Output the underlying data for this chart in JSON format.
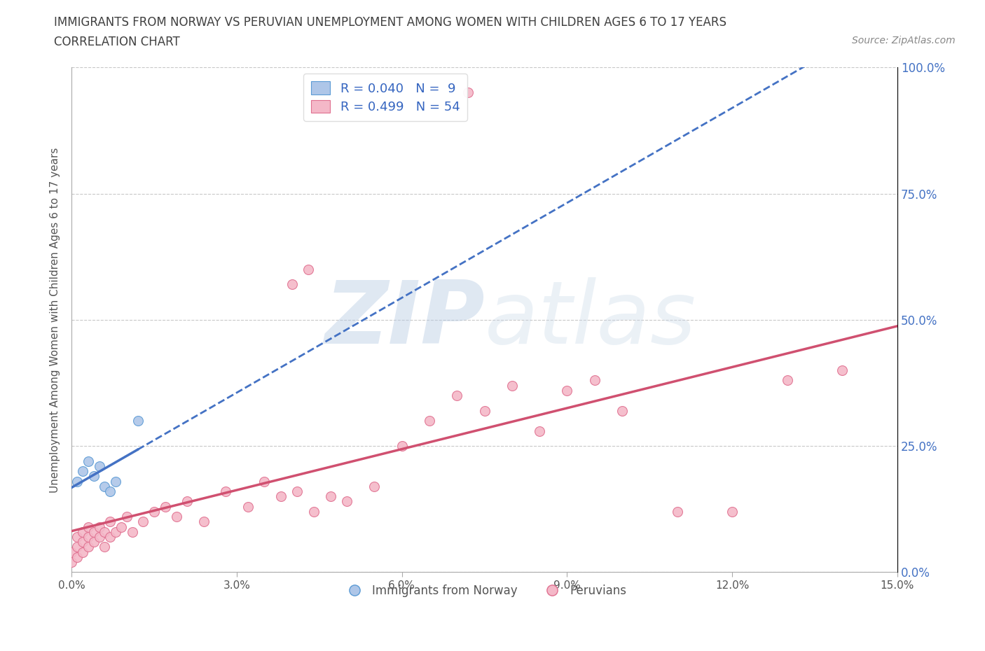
{
  "title_line1": "IMMIGRANTS FROM NORWAY VS PERUVIAN UNEMPLOYMENT AMONG WOMEN WITH CHILDREN AGES 6 TO 17 YEARS",
  "title_line2": "CORRELATION CHART",
  "source_text": "Source: ZipAtlas.com",
  "watermark_zip": "ZIP",
  "watermark_atlas": "atlas",
  "ylabel": "Unemployment Among Women with Children Ages 6 to 17 years",
  "xlim": [
    0.0,
    0.15
  ],
  "ylim": [
    0.0,
    1.0
  ],
  "xtick_vals": [
    0.0,
    0.03,
    0.06,
    0.09,
    0.12,
    0.15
  ],
  "xtick_labels": [
    "0.0%",
    "3.0%",
    "6.0%",
    "9.0%",
    "12.0%",
    "15.0%"
  ],
  "ytick_vals": [
    0.0,
    0.25,
    0.5,
    0.75,
    1.0
  ],
  "ytick_labels": [
    "0.0%",
    "25.0%",
    "50.0%",
    "75.0%",
    "100.0%"
  ],
  "norway_color": "#aec6e8",
  "norway_edge_color": "#5b9bd5",
  "peru_color": "#f4b8c8",
  "peru_edge_color": "#e07090",
  "norway_R": 0.04,
  "norway_N": 9,
  "peru_R": 0.499,
  "peru_N": 54,
  "norway_line_color": "#4472c4",
  "peru_line_color": "#d05070",
  "grid_color": "#c8c8c8",
  "background_color": "#ffffff",
  "title_color": "#404040",
  "legend_text_color": "#3565c0",
  "norway_x": [
    0.001,
    0.002,
    0.003,
    0.004,
    0.005,
    0.006,
    0.007,
    0.008,
    0.012
  ],
  "norway_y": [
    0.18,
    0.2,
    0.22,
    0.19,
    0.21,
    0.17,
    0.16,
    0.18,
    0.3
  ],
  "peru_x": [
    0.0,
    0.0,
    0.001,
    0.001,
    0.001,
    0.002,
    0.002,
    0.002,
    0.003,
    0.003,
    0.003,
    0.004,
    0.004,
    0.005,
    0.005,
    0.006,
    0.006,
    0.007,
    0.007,
    0.008,
    0.009,
    0.01,
    0.011,
    0.013,
    0.015,
    0.017,
    0.019,
    0.021,
    0.024,
    0.028,
    0.032,
    0.035,
    0.038,
    0.041,
    0.044,
    0.047,
    0.05,
    0.04,
    0.043,
    0.055,
    0.06,
    0.065,
    0.07,
    0.075,
    0.08,
    0.085,
    0.09,
    0.095,
    0.1,
    0.11,
    0.12,
    0.13,
    0.14,
    0.072
  ],
  "peru_y": [
    0.02,
    0.04,
    0.03,
    0.05,
    0.07,
    0.04,
    0.06,
    0.08,
    0.05,
    0.07,
    0.09,
    0.06,
    0.08,
    0.07,
    0.09,
    0.05,
    0.08,
    0.07,
    0.1,
    0.08,
    0.09,
    0.11,
    0.08,
    0.1,
    0.12,
    0.13,
    0.11,
    0.14,
    0.1,
    0.16,
    0.13,
    0.18,
    0.15,
    0.16,
    0.12,
    0.15,
    0.14,
    0.57,
    0.6,
    0.17,
    0.25,
    0.3,
    0.35,
    0.32,
    0.37,
    0.28,
    0.36,
    0.38,
    0.32,
    0.12,
    0.12,
    0.38,
    0.4,
    0.95
  ]
}
